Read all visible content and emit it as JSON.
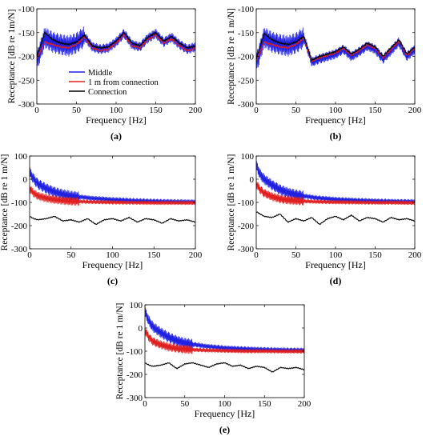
{
  "chart_data": [
    {
      "type": "line",
      "panel_label": "(a)",
      "xlabel": "Frequency [Hz]",
      "ylabel": "Receptance [dB re 1m/N]",
      "xlim": [
        0,
        200
      ],
      "ylim": [
        -300,
        -100
      ],
      "xticks": [
        0,
        50,
        100,
        150,
        200
      ],
      "yticks": [
        -300,
        -250,
        -200,
        -150,
        -100
      ],
      "grid": false,
      "legend": "lower-left",
      "series": [
        {
          "name": "Middle",
          "color": "#2020e0",
          "band": true,
          "x": [
            0,
            10,
            20,
            30,
            40,
            50,
            60,
            70,
            80,
            90,
            100,
            110,
            120,
            130,
            140,
            150,
            160,
            170,
            180,
            190,
            200
          ],
          "y": [
            -210,
            -160,
            -170,
            -175,
            -178,
            -172,
            -158,
            -180,
            -185,
            -182,
            -170,
            -152,
            -175,
            -180,
            -162,
            -152,
            -170,
            -160,
            -175,
            -185,
            -180
          ]
        },
        {
          "name": "1 m  from connection",
          "color": "#e02020",
          "band": false,
          "x": [
            0,
            10,
            20,
            30,
            40,
            50,
            60,
            70,
            80,
            90,
            100,
            110,
            120,
            130,
            140,
            150,
            160,
            170,
            180,
            190,
            200
          ],
          "y": [
            -205,
            -170,
            -175,
            -180,
            -182,
            -175,
            -160,
            -182,
            -188,
            -185,
            -172,
            -155,
            -178,
            -182,
            -165,
            -155,
            -172,
            -163,
            -178,
            -188,
            -183
          ]
        },
        {
          "name": "Connection",
          "color": "#000000",
          "band": false,
          "x": [
            0,
            10,
            20,
            30,
            40,
            50,
            60,
            70,
            80,
            90,
            100,
            110,
            120,
            130,
            140,
            150,
            160,
            170,
            180,
            190,
            200
          ],
          "y": [
            -200,
            -150,
            -165,
            -172,
            -175,
            -170,
            -155,
            -178,
            -182,
            -180,
            -168,
            -150,
            -172,
            -178,
            -160,
            -150,
            -168,
            -158,
            -172,
            -182,
            -178
          ]
        }
      ]
    },
    {
      "type": "line",
      "panel_label": "(b)",
      "xlabel": "Frequency [Hz]",
      "ylabel": "Receptance [dB re 1 m/N]",
      "xlim": [
        0,
        200
      ],
      "ylim": [
        -300,
        -100
      ],
      "xticks": [
        0,
        50,
        100,
        150,
        200
      ],
      "yticks": [
        -300,
        -250,
        -200,
        -150,
        -100
      ],
      "grid": false,
      "series": [
        {
          "name": "",
          "color": "#2020e0",
          "band": true,
          "x": [
            0,
            10,
            20,
            30,
            40,
            50,
            60,
            70,
            80,
            90,
            100,
            110,
            120,
            130,
            140,
            150,
            160,
            170,
            180,
            190,
            200
          ],
          "y": [
            -215,
            -160,
            -170,
            -175,
            -178,
            -172,
            -160,
            -212,
            -205,
            -200,
            -195,
            -185,
            -200,
            -190,
            -178,
            -185,
            -205,
            -188,
            -170,
            -200,
            -185
          ]
        },
        {
          "name": "",
          "color": "#e02020",
          "band": false,
          "x": [
            0,
            10,
            20,
            30,
            40,
            50,
            60,
            70,
            80,
            90,
            100,
            110,
            120,
            130,
            140,
            150,
            160,
            170,
            180,
            190,
            200
          ],
          "y": [
            -210,
            -170,
            -175,
            -180,
            -182,
            -175,
            -162,
            -210,
            -203,
            -198,
            -193,
            -183,
            -198,
            -188,
            -176,
            -183,
            -203,
            -186,
            -168,
            -198,
            -183
          ]
        },
        {
          "name": "",
          "color": "#000000",
          "band": false,
          "x": [
            0,
            10,
            20,
            30,
            40,
            50,
            60,
            70,
            80,
            90,
            100,
            110,
            120,
            130,
            140,
            150,
            160,
            170,
            180,
            190,
            200
          ],
          "y": [
            -205,
            -152,
            -165,
            -172,
            -175,
            -170,
            -158,
            -208,
            -200,
            -195,
            -190,
            -180,
            -195,
            -185,
            -172,
            -180,
            -200,
            -182,
            -165,
            -195,
            -180
          ]
        }
      ]
    },
    {
      "type": "line",
      "panel_label": "(c)",
      "xlabel": "Frequency [Hz]",
      "ylabel": "Receptance [dB re 1 m/N]",
      "xlim": [
        0,
        200
      ],
      "ylim": [
        -300,
        100
      ],
      "xticks": [
        0,
        50,
        100,
        150,
        200
      ],
      "yticks": [
        -300,
        -200,
        -100,
        0,
        100
      ],
      "grid": false,
      "series": [
        {
          "name": "",
          "color": "#2020e0",
          "band": true,
          "x": [
            0,
            5,
            10,
            20,
            30,
            40,
            50,
            75,
            100,
            125,
            150,
            175,
            200
          ],
          "y": [
            30,
            0,
            -20,
            -40,
            -55,
            -65,
            -72,
            -82,
            -88,
            -92,
            -95,
            -97,
            -98
          ]
        },
        {
          "name": "",
          "color": "#e02020",
          "band": true,
          "x": [
            0,
            5,
            10,
            20,
            30,
            40,
            50,
            75,
            100,
            125,
            150,
            175,
            200
          ],
          "y": [
            -40,
            -60,
            -72,
            -82,
            -88,
            -92,
            -95,
            -98,
            -100,
            -101,
            -102,
            -102,
            -102
          ]
        },
        {
          "name": "",
          "color": "#000000",
          "band": false,
          "x": [
            0,
            5,
            10,
            20,
            30,
            40,
            50,
            60,
            70,
            80,
            90,
            100,
            110,
            120,
            130,
            140,
            150,
            160,
            170,
            180,
            190,
            200
          ],
          "y": [
            -160,
            -170,
            -175,
            -170,
            -160,
            -180,
            -175,
            -185,
            -170,
            -195,
            -175,
            -170,
            -180,
            -165,
            -185,
            -170,
            -175,
            -190,
            -170,
            -180,
            -175,
            -185
          ]
        }
      ]
    },
    {
      "type": "line",
      "panel_label": "(d)",
      "xlabel": "Frequency [Hz]",
      "ylabel": "Receptance [dB re 1 m/N]",
      "xlim": [
        0,
        200
      ],
      "ylim": [
        -300,
        100
      ],
      "xticks": [
        0,
        50,
        100,
        150,
        200
      ],
      "yticks": [
        -300,
        -200,
        -100,
        0,
        100
      ],
      "grid": false,
      "series": [
        {
          "name": "",
          "color": "#2020e0",
          "band": true,
          "x": [
            0,
            5,
            10,
            20,
            30,
            40,
            50,
            75,
            100,
            125,
            150,
            175,
            200
          ],
          "y": [
            60,
            20,
            0,
            -25,
            -45,
            -58,
            -67,
            -80,
            -87,
            -91,
            -94,
            -96,
            -97
          ]
        },
        {
          "name": "",
          "color": "#e02020",
          "band": true,
          "x": [
            0,
            5,
            10,
            20,
            30,
            40,
            50,
            75,
            100,
            125,
            150,
            175,
            200
          ],
          "y": [
            -20,
            -45,
            -60,
            -75,
            -85,
            -90,
            -93,
            -97,
            -99,
            -100,
            -101,
            -101,
            -102
          ]
        },
        {
          "name": "",
          "color": "#000000",
          "band": false,
          "x": [
            0,
            5,
            10,
            20,
            30,
            40,
            50,
            60,
            70,
            80,
            90,
            100,
            110,
            120,
            130,
            140,
            150,
            160,
            170,
            180,
            190,
            200
          ],
          "y": [
            -140,
            -150,
            -160,
            -165,
            -150,
            -185,
            -170,
            -180,
            -165,
            -195,
            -170,
            -160,
            -175,
            -155,
            -180,
            -165,
            -170,
            -185,
            -165,
            -175,
            -170,
            -180
          ]
        }
      ]
    },
    {
      "type": "line",
      "panel_label": "(e)",
      "xlabel": "Frequency [Hz]",
      "ylabel": "Receptance [dB re 1 m/N]",
      "xlim": [
        0,
        200
      ],
      "ylim": [
        -300,
        100
      ],
      "xticks": [
        0,
        50,
        100,
        150,
        200
      ],
      "yticks": [
        -300,
        -200,
        -100,
        0,
        100
      ],
      "grid": false,
      "series": [
        {
          "name": "",
          "color": "#2020e0",
          "band": true,
          "x": [
            0,
            5,
            10,
            20,
            30,
            40,
            50,
            75,
            100,
            125,
            150,
            175,
            200
          ],
          "y": [
            70,
            30,
            5,
            -20,
            -40,
            -55,
            -65,
            -78,
            -86,
            -90,
            -93,
            -95,
            -96
          ]
        },
        {
          "name": "",
          "color": "#e02020",
          "band": true,
          "x": [
            0,
            5,
            10,
            20,
            30,
            40,
            50,
            75,
            100,
            125,
            150,
            175,
            200
          ],
          "y": [
            -10,
            -40,
            -58,
            -72,
            -82,
            -88,
            -92,
            -96,
            -98,
            -100,
            -100,
            -101,
            -101
          ]
        },
        {
          "name": "",
          "color": "#000000",
          "band": false,
          "x": [
            0,
            5,
            10,
            20,
            30,
            40,
            50,
            60,
            70,
            80,
            90,
            100,
            110,
            120,
            130,
            140,
            150,
            160,
            170,
            180,
            190,
            200
          ],
          "y": [
            -150,
            -160,
            -165,
            -160,
            -150,
            -175,
            -155,
            -150,
            -160,
            -170,
            -155,
            -150,
            -165,
            -160,
            -175,
            -165,
            -170,
            -190,
            -170,
            -175,
            -170,
            -180
          ]
        }
      ]
    }
  ]
}
